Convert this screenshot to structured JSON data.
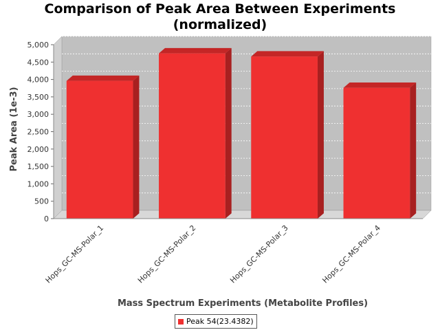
{
  "chart_data": {
    "type": "bar",
    "title": "Comparison of Peak Area Between Experiments\n(normalized)",
    "xlabel": "Mass Spectrum Experiments (Metabolite Profiles)",
    "ylabel": "Peak Area (1e-3)",
    "categories": [
      "Hops_GC-MS-Polar_1",
      "Hops_GC-MS-Polar_2",
      "Hops_GC-MS-Polar_3",
      "Hops_GC-MS-Polar_4"
    ],
    "series": [
      {
        "name": "Peak 54(23.4382)",
        "values": [
          3960,
          4750,
          4660,
          3760
        ]
      }
    ],
    "ylim": [
      0,
      5000
    ],
    "yticks": [
      "0",
      "500",
      "1,000",
      "1,500",
      "2,000",
      "2,500",
      "3,000",
      "3,500",
      "4,000",
      "4,500",
      "5,000"
    ],
    "grid": true,
    "legend_position": "bottom",
    "colors": {
      "bar_front": "#ef3030",
      "bar_side": "#a82020",
      "bar_top": "#c42626",
      "plot_background": "#c0c0c0",
      "floor": "#d8d8d8",
      "gridline": "#ffffff"
    }
  }
}
